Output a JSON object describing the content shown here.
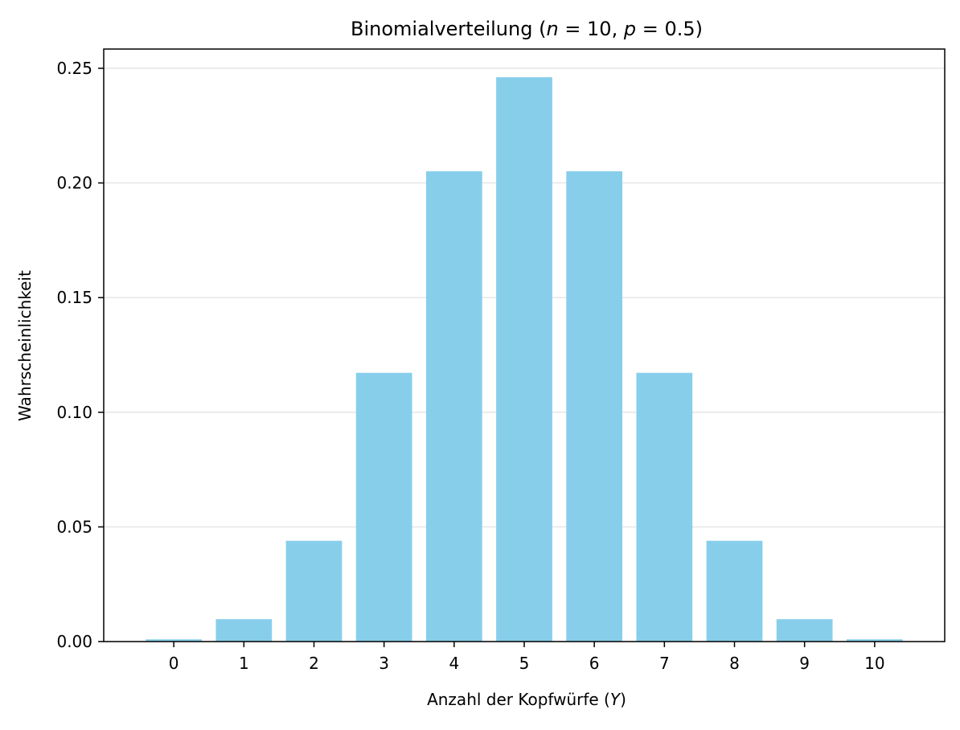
{
  "chart_data": {
    "type": "bar",
    "title": {
      "prefix": "Binomialverteilung (",
      "n_symbol": "n",
      "n_value": " = 10, ",
      "p_symbol": "p",
      "p_value": " = 0.5)"
    },
    "xlabel": {
      "text": "Anzahl der Kopfwürfe (",
      "symbol": "Y",
      "suffix": ")"
    },
    "ylabel": "Wahrscheinlichkeit",
    "categories": [
      "0",
      "1",
      "2",
      "3",
      "4",
      "5",
      "6",
      "7",
      "8",
      "9",
      "10"
    ],
    "values": [
      0.000977,
      0.009766,
      0.043945,
      0.117188,
      0.205078,
      0.246094,
      0.205078,
      0.117188,
      0.043945,
      0.009766,
      0.000977
    ],
    "yticks": [
      "0.00",
      "0.05",
      "0.10",
      "0.15",
      "0.20",
      "0.25"
    ],
    "ytick_values": [
      0,
      0.05,
      0.1,
      0.15,
      0.2,
      0.25
    ],
    "ylim": [
      0,
      0.258398
    ],
    "xlim": [
      -1,
      11
    ],
    "grid": "horizontal",
    "bar_color": "#87CEEB",
    "grid_color": "#E6E6E6"
  }
}
